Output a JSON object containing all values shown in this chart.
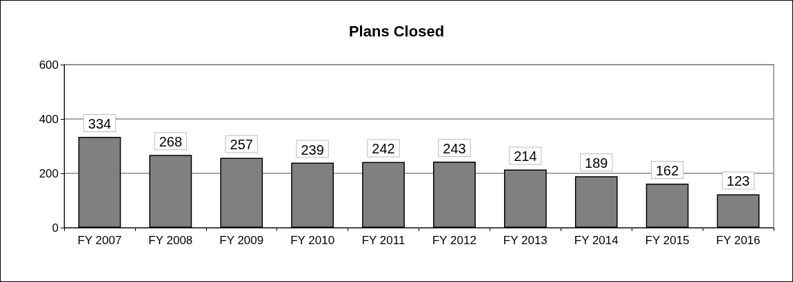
{
  "chart_data": {
    "type": "bar",
    "title": "Plans Closed",
    "categories": [
      "FY 2007",
      "FY 2008",
      "FY 2009",
      "FY 2010",
      "FY 2011",
      "FY 2012",
      "FY 2013",
      "FY 2014",
      "FY 2015",
      "FY 2016"
    ],
    "values": [
      334,
      268,
      257,
      239,
      242,
      243,
      214,
      189,
      162,
      123
    ],
    "color": "#808080",
    "ylim": [
      0,
      600
    ],
    "yticks": [
      0,
      200,
      400,
      600
    ],
    "grid": "y",
    "data_labels": true
  }
}
